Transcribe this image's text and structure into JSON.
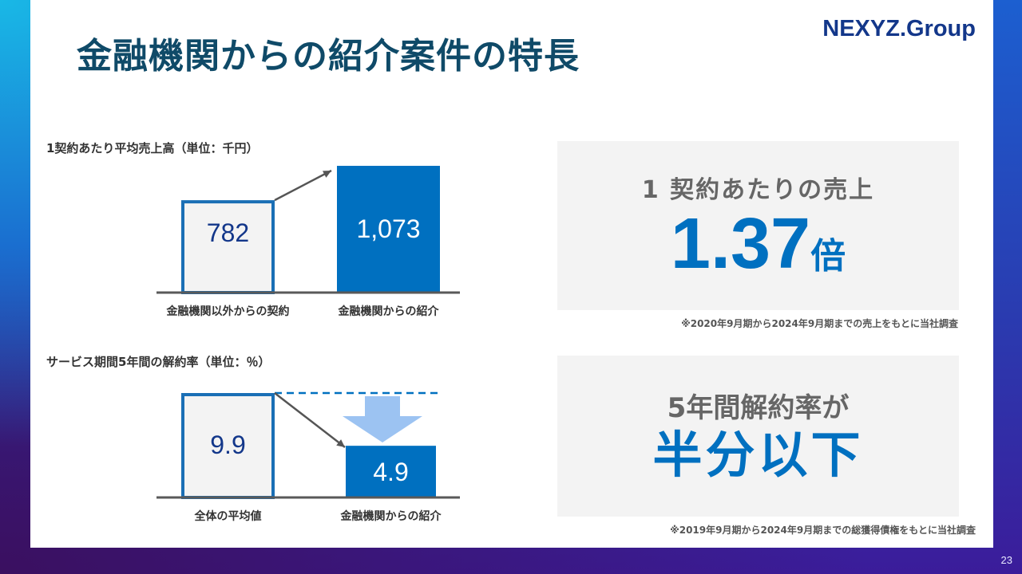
{
  "title": "金融機関からの紹介案件の特長",
  "logo": {
    "main": "NEXYZ",
    "dot": ".",
    "sub": "Group"
  },
  "page_number": "23",
  "colors": {
    "accent": "#0070c0",
    "title": "#0f4a68",
    "outline": "#1a6fb5",
    "arrow_down": "#9cc3f2",
    "baseline": "#595959"
  },
  "chart_data": [
    {
      "type": "bar",
      "title": "1契約あたり平均売上高（単位：千円）",
      "categories": [
        "金融機関以外からの契約",
        "金融機関からの紹介"
      ],
      "values": [
        782,
        1073
      ],
      "value_labels": [
        "782",
        "1,073"
      ],
      "ylim": [
        0,
        1073
      ],
      "legend": "none",
      "grid": false
    },
    {
      "type": "bar",
      "title": "サービス期間5年間の解約率（単位：％）",
      "categories": [
        "全体の平均値",
        "金融機関からの紹介"
      ],
      "values": [
        9.9,
        4.9
      ],
      "value_labels": [
        "9.9",
        "4.9"
      ],
      "ylim": [
        0,
        9.9
      ],
      "legend": "none",
      "grid": false
    }
  ],
  "highlights": [
    {
      "label": "1 契約あたりの売上",
      "value": "1.37",
      "unit": "倍",
      "note": "※2020年9月期から2024年9月期までの売上をもとに当社調査"
    },
    {
      "label": "5年間解約率が",
      "value": "半分以下",
      "note": "※2019年9月期から2024年9月期までの総獲得債権をもとに当社調査"
    }
  ]
}
